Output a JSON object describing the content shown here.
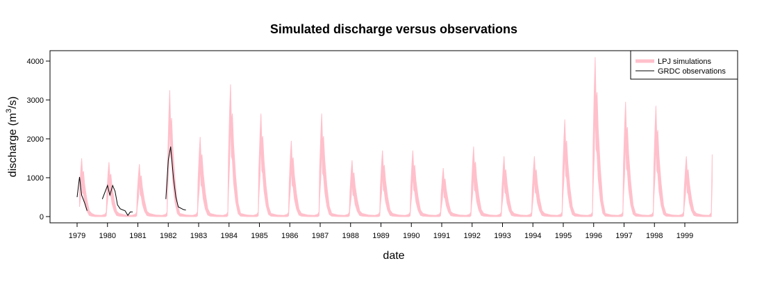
{
  "chart_data": {
    "type": "area",
    "title": "Simulated discharge versus observations",
    "xlabel": "date",
    "ylabel": "discharge (m³/s)",
    "ylabel_base": "discharge (m",
    "ylabel_sup": "3",
    "ylabel_end": "/s)",
    "xlim": [
      1979.0,
      2000.0
    ],
    "ylim": [
      0,
      4200
    ],
    "x_ticks": [
      "1979",
      "1980",
      "1981",
      "1982",
      "1983",
      "1984",
      "1985",
      "1986",
      "1987",
      "1988",
      "1989",
      "1990",
      "1991",
      "1992",
      "1993",
      "1994",
      "1995",
      "1996",
      "1997",
      "1998",
      "1999"
    ],
    "y_ticks": [
      "0",
      "1000",
      "2000",
      "3000",
      "4000"
    ],
    "grid": false,
    "legend_position": "top-right",
    "series": [
      {
        "name": "LPJ simulations",
        "kind": "band",
        "color": "#ffc0cb",
        "peaks": [
          {
            "year": 1979,
            "t": 0.15,
            "upper": 1500,
            "lower": 1000
          },
          {
            "year": 1980,
            "t": 0.05,
            "upper": 1400,
            "lower": 950
          },
          {
            "year": 1981,
            "t": 0.05,
            "upper": 1350,
            "lower": 900
          },
          {
            "year": 1982,
            "t": 0.05,
            "upper": 3250,
            "lower": 2500
          },
          {
            "year": 1983,
            "t": 0.05,
            "upper": 2050,
            "lower": 1300
          },
          {
            "year": 1984,
            "t": 0.05,
            "upper": 3400,
            "lower": 2500
          },
          {
            "year": 1985,
            "t": 0.05,
            "upper": 2650,
            "lower": 1900
          },
          {
            "year": 1986,
            "t": 0.05,
            "upper": 1950,
            "lower": 1300
          },
          {
            "year": 1987,
            "t": 0.05,
            "upper": 2650,
            "lower": 1800
          },
          {
            "year": 1988,
            "t": 0.05,
            "upper": 1450,
            "lower": 900
          },
          {
            "year": 1989,
            "t": 0.05,
            "upper": 1700,
            "lower": 1100
          },
          {
            "year": 1990,
            "t": 0.05,
            "upper": 1700,
            "lower": 1100
          },
          {
            "year": 1991,
            "t": 0.05,
            "upper": 1250,
            "lower": 800
          },
          {
            "year": 1992,
            "t": 0.05,
            "upper": 1800,
            "lower": 1100
          },
          {
            "year": 1993,
            "t": 0.05,
            "upper": 1550,
            "lower": 1000
          },
          {
            "year": 1994,
            "t": 0.05,
            "upper": 1550,
            "lower": 1000
          },
          {
            "year": 1995,
            "t": 0.05,
            "upper": 2500,
            "lower": 1700
          },
          {
            "year": 1996,
            "t": 0.05,
            "upper": 4100,
            "lower": 2800
          },
          {
            "year": 1997,
            "t": 0.05,
            "upper": 2950,
            "lower": 2000
          },
          {
            "year": 1998,
            "t": 0.05,
            "upper": 2850,
            "lower": 1900
          },
          {
            "year": 1999,
            "t": 0.05,
            "upper": 1550,
            "lower": 1000
          }
        ],
        "end": {
          "x": 1999.9,
          "upper": 1600,
          "lower": 900
        }
      },
      {
        "name": "GRDC observations",
        "kind": "line",
        "color": "#000000",
        "segments": [
          [
            [
              1979.0,
              500
            ],
            [
              1979.08,
              1020
            ],
            [
              1979.15,
              550
            ],
            [
              1979.25,
              350
            ],
            [
              1979.33,
              150
            ]
          ],
          [
            [
              1979.83,
              450
            ],
            [
              1980.0,
              800
            ],
            [
              1980.08,
              550
            ],
            [
              1980.17,
              800
            ],
            [
              1980.25,
              650
            ],
            [
              1980.33,
              300
            ],
            [
              1980.42,
              200
            ],
            [
              1980.58,
              150
            ],
            [
              1980.67,
              30
            ],
            [
              1980.75,
              120
            ],
            [
              1980.83,
              120
            ]
          ],
          [
            [
              1981.92,
              450
            ],
            [
              1982.0,
              1450
            ],
            [
              1982.08,
              1800
            ],
            [
              1982.17,
              1000
            ],
            [
              1982.25,
              500
            ],
            [
              1982.33,
              250
            ],
            [
              1982.5,
              180
            ],
            [
              1982.58,
              170
            ]
          ]
        ]
      }
    ]
  }
}
